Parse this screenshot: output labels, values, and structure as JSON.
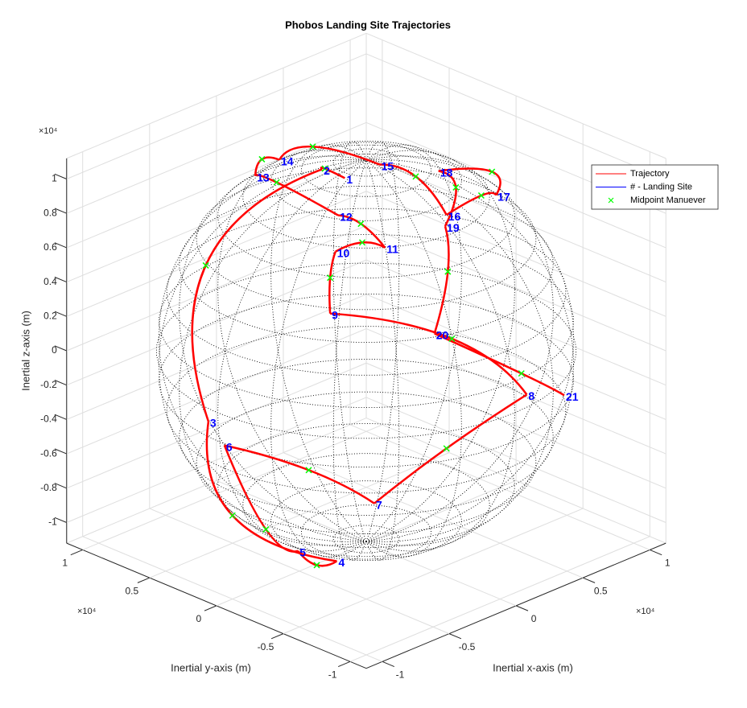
{
  "chart_data": {
    "type": "trajectory3d",
    "title": "Phobos Landing Site Trajectories",
    "xlabel": "Inertial x-axis (m)",
    "ylabel": "Inertial y-axis (m)",
    "zlabel": "Inertial z-axis (m)",
    "x_multiplier": "×10⁴",
    "y_multiplier": "×10⁴",
    "z_multiplier": "×10⁴",
    "xlim": [
      -1.12,
      1.12
    ],
    "ylim": [
      -1.12,
      1.12
    ],
    "zlim": [
      -1.12,
      1.12
    ],
    "xticks": [
      -1,
      -0.5,
      0,
      0.5,
      1
    ],
    "yticks": [
      -1,
      -0.5,
      0,
      0.5,
      1
    ],
    "zticks": [
      -1,
      -0.8,
      -0.6,
      -0.4,
      -0.2,
      0,
      0.2,
      0.4,
      0.6,
      0.8,
      1
    ],
    "grid": true,
    "legend": "northeast",
    "sphere_radius": 1.11,
    "series": [
      {
        "name": "Trajectory",
        "color": "#ff0000"
      },
      {
        "name": "# - Landing Site",
        "color": "#0000ff",
        "labels": [
          "1",
          "2",
          "3",
          "4",
          "5",
          "6",
          "7",
          "8",
          "9",
          "10",
          "11",
          "12",
          "13",
          "14",
          "15",
          "16",
          "17",
          "18",
          "19",
          "20",
          "21"
        ],
        "x": [
          -0.21,
          -0.2,
          -1.1,
          -0.44,
          -0.57,
          -1.1,
          -0.69,
          0.1,
          -0.77,
          -0.58,
          -0.39,
          -0.43,
          -0.28,
          -0.03,
          0.01,
          0.04,
          0.54,
          0.28,
          -0.02,
          -0.39,
          0.48
        ],
        "y": [
          -0.05,
          0.13,
          0.08,
          -0.22,
          -0.06,
          -0.04,
          -0.75,
          -1.1,
          -0.5,
          -0.35,
          -0.53,
          -0.22,
          0.55,
          0.62,
          -0.09,
          -0.56,
          -0.43,
          -0.26,
          -0.61,
          -0.9,
          -1.0
        ],
        "z": [
          1.09,
          1.08,
          -0.08,
          -1.01,
          -0.96,
          -0.18,
          -0.42,
          0.07,
          0.63,
          0.88,
          0.9,
          1.0,
          0.93,
          0.92,
          1.11,
          0.96,
          0.87,
          1.04,
          0.93,
          0.52,
          -0.09
        ]
      },
      {
        "name": "Midpoint Manuever",
        "color": "#00ff00",
        "x": [
          -0.2,
          -0.82,
          -0.76,
          -0.52,
          -0.82,
          -0.96,
          -0.42,
          -0.31,
          -0.68,
          -0.46,
          -0.39,
          -0.38,
          -0.09,
          0.12,
          0.1,
          0.39,
          0.75,
          0.26,
          -0.17,
          0.07
        ],
        "y": [
          0.11,
          0.38,
          0.24,
          -0.15,
          -0.07,
          -0.53,
          -1.02,
          -0.95,
          -0.41,
          -0.43,
          -0.35,
          0.29,
          0.69,
          0.52,
          -0.27,
          -0.47,
          -0.19,
          -0.41,
          -0.78,
          -1.09
        ],
        "z": [
          1.09,
          0.64,
          -0.79,
          -1.03,
          -0.75,
          -0.21,
          -0.1,
          0.48,
          0.78,
          0.92,
          0.98,
          1.01,
          0.92,
          0.98,
          1.07,
          0.93,
          0.86,
          1.0,
          0.77,
          0.2
        ]
      }
    ]
  }
}
